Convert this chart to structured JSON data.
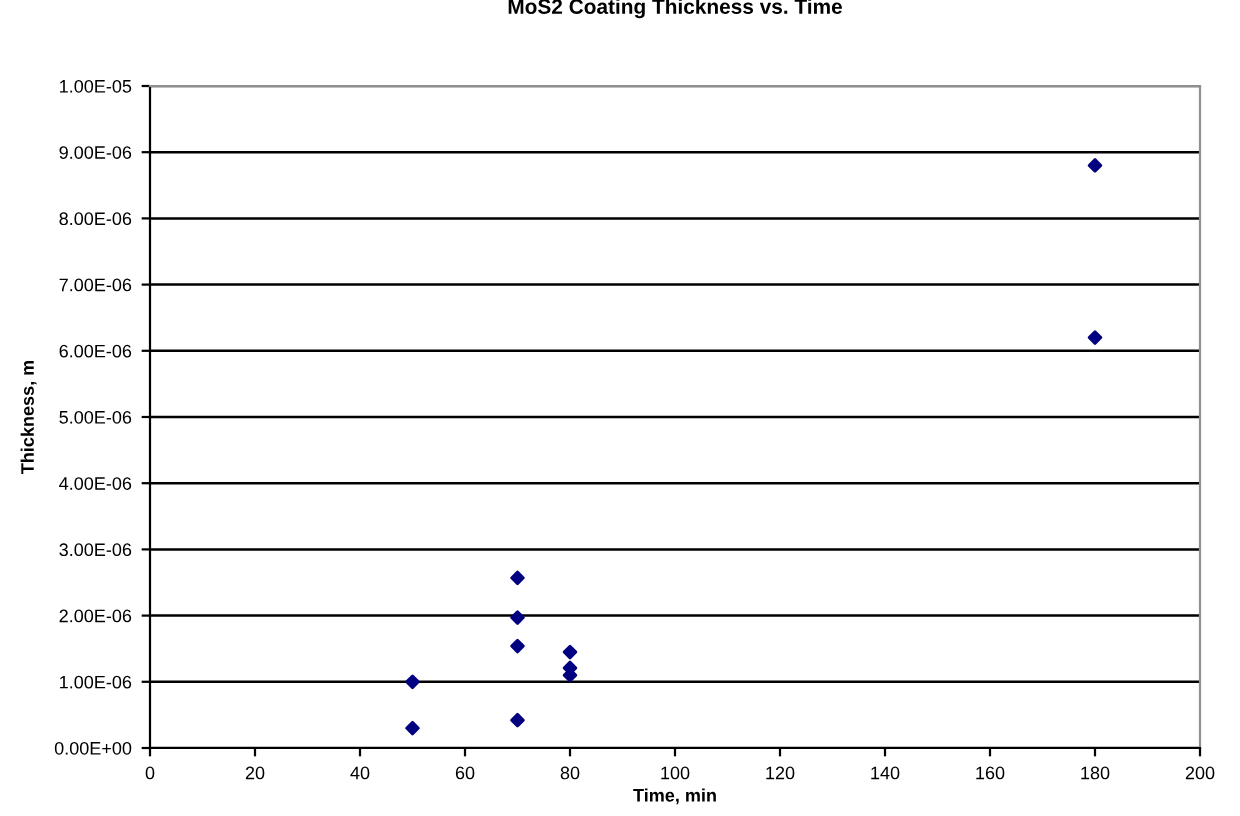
{
  "chart_data": {
    "type": "scatter",
    "title": "MoS2 Coating Thickness vs. Time",
    "xlabel": "Time, min",
    "ylabel": "Thickness, m",
    "x": [
      50,
      50,
      70,
      70,
      70,
      70,
      80,
      80,
      80,
      180,
      180
    ],
    "series": [
      {
        "color": "#000080",
        "values": [
          1e-06,
          3e-07,
          2.57e-06,
          1.97e-06,
          1.54e-06,
          4.2e-07,
          1.45e-06,
          1.21e-06,
          1.1e-06,
          8.8e-06,
          6.2e-06
        ]
      }
    ],
    "xlim": [
      0,
      200
    ],
    "xticks": [
      0,
      20,
      40,
      60,
      80,
      100,
      120,
      140,
      160,
      180,
      200
    ],
    "ylim": [
      0,
      1e-05
    ],
    "yticks": [
      {
        "value": 0,
        "label": "0.00E+00"
      },
      {
        "value": 1e-06,
        "label": "1.00E-06"
      },
      {
        "value": 2e-06,
        "label": "2.00E-06"
      },
      {
        "value": 3e-06,
        "label": "3.00E-06"
      },
      {
        "value": 4e-06,
        "label": "4.00E-06"
      },
      {
        "value": 5e-06,
        "label": "5.00E-06"
      },
      {
        "value": 6e-06,
        "label": "6.00E-06"
      },
      {
        "value": 7e-06,
        "label": "7.00E-06"
      },
      {
        "value": 8e-06,
        "label": "8.00E-06"
      },
      {
        "value": 9e-06,
        "label": "9.00E-06"
      },
      {
        "value": 1e-05,
        "label": "1.00E-05"
      }
    ],
    "grid": "y",
    "marker": "diamond",
    "legend": false
  }
}
